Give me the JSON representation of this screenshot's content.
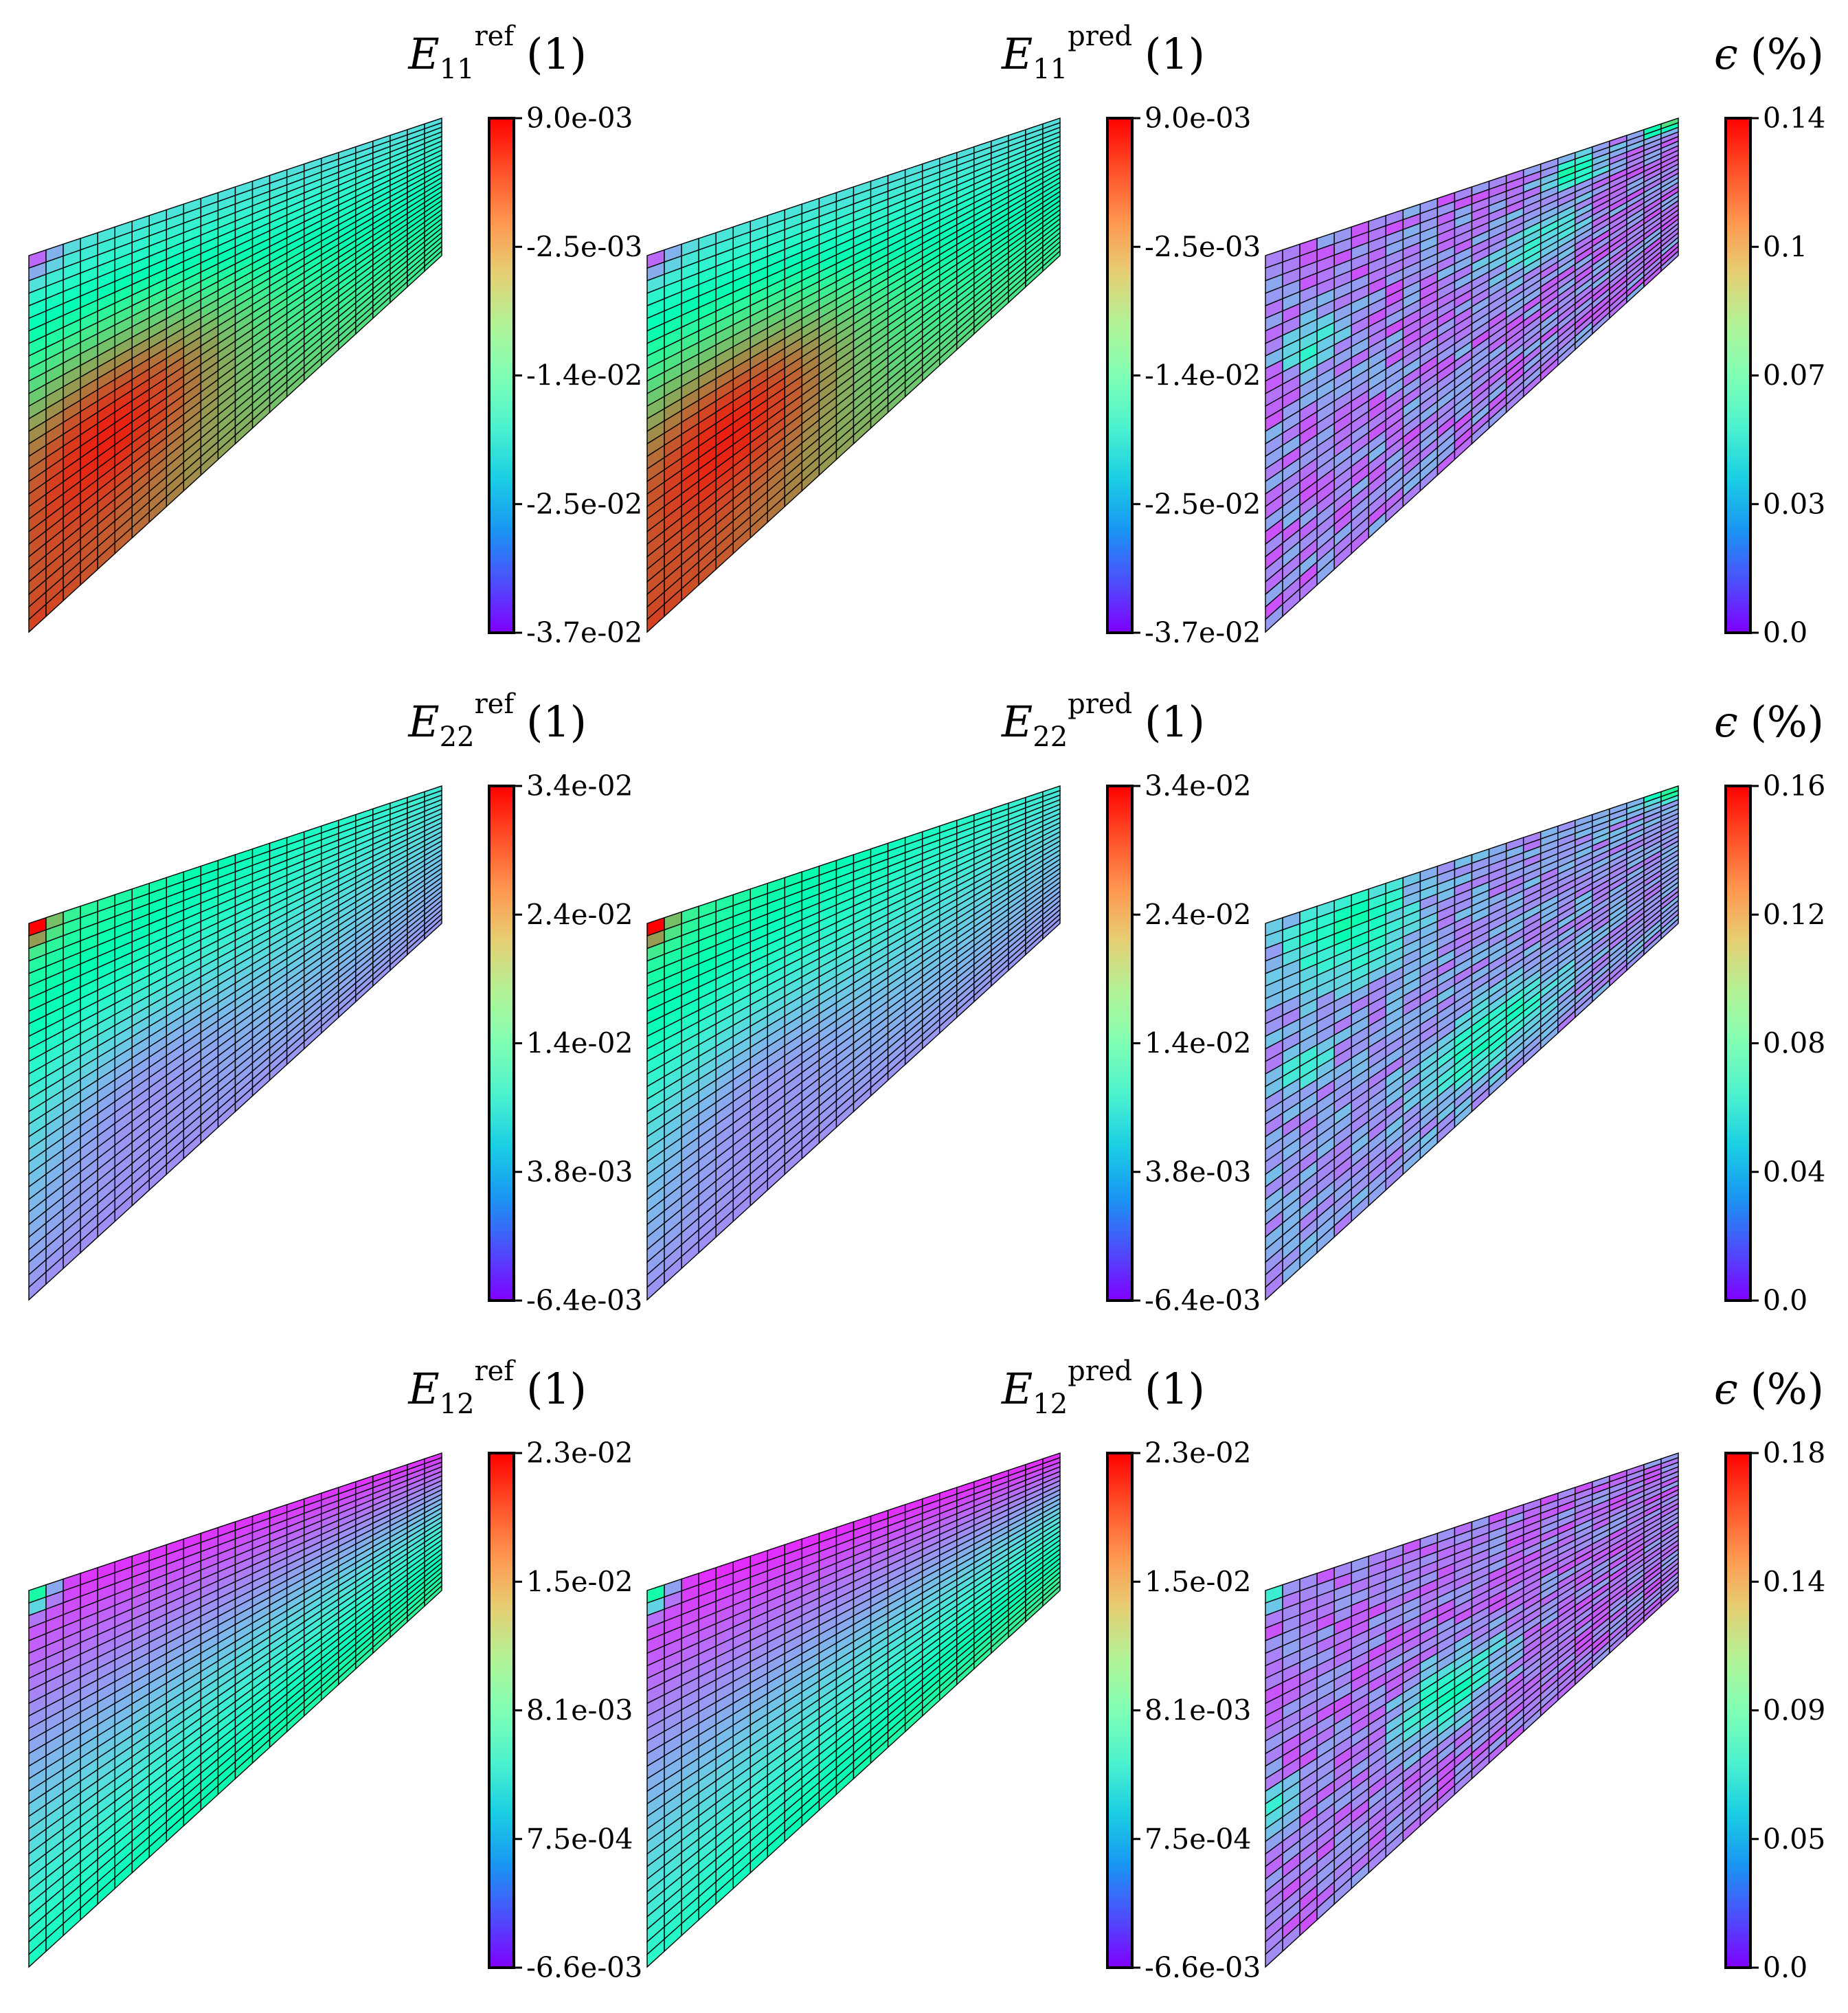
{
  "chart_data": [
    {
      "type": "heatmap",
      "quantity": "E",
      "sub": "11",
      "sup": "ref",
      "unit": "(1)",
      "field": "e11",
      "colorbar": {
        "ticks": [
          "9.0e-03",
          "-2.5e-03",
          "-1.4e-02",
          "-2.5e-02",
          "-3.7e-02"
        ]
      }
    },
    {
      "type": "heatmap",
      "quantity": "E",
      "sub": "11",
      "sup": "pred",
      "unit": "(1)",
      "field": "e11",
      "colorbar": {
        "ticks": [
          "9.0e-03",
          "-2.5e-03",
          "-1.4e-02",
          "-2.5e-02",
          "-3.7e-02"
        ]
      }
    },
    {
      "type": "heatmap",
      "quantity": "ϵ",
      "sub": "",
      "sup": "",
      "unit": "(%)",
      "field": "err1",
      "colorbar": {
        "ticks": [
          "0.14",
          "0.1",
          "0.07",
          "0.03",
          "0.0"
        ]
      }
    },
    {
      "type": "heatmap",
      "quantity": "E",
      "sub": "22",
      "sup": "ref",
      "unit": "(1)",
      "field": "e22",
      "colorbar": {
        "ticks": [
          "3.4e-02",
          "2.4e-02",
          "1.4e-02",
          "3.8e-03",
          "-6.4e-03"
        ]
      }
    },
    {
      "type": "heatmap",
      "quantity": "E",
      "sub": "22",
      "sup": "pred",
      "unit": "(1)",
      "field": "e22",
      "colorbar": {
        "ticks": [
          "3.4e-02",
          "2.4e-02",
          "1.4e-02",
          "3.8e-03",
          "-6.4e-03"
        ]
      }
    },
    {
      "type": "heatmap",
      "quantity": "ϵ",
      "sub": "",
      "sup": "",
      "unit": "(%)",
      "field": "err2",
      "colorbar": {
        "ticks": [
          "0.16",
          "0.12",
          "0.08",
          "0.04",
          "0.0"
        ]
      }
    },
    {
      "type": "heatmap",
      "quantity": "E",
      "sub": "12",
      "sup": "ref",
      "unit": "(1)",
      "field": "e12",
      "colorbar": {
        "ticks": [
          "2.3e-02",
          "1.5e-02",
          "8.1e-03",
          "7.5e-04",
          "-6.6e-03"
        ]
      }
    },
    {
      "type": "heatmap",
      "quantity": "E",
      "sub": "12",
      "sup": "pred",
      "unit": "(1)",
      "field": "e12p",
      "colorbar": {
        "ticks": [
          "2.3e-02",
          "1.5e-02",
          "8.1e-03",
          "7.5e-04",
          "-6.6e-03"
        ]
      }
    },
    {
      "type": "heatmap",
      "quantity": "ϵ",
      "sub": "",
      "sup": "",
      "unit": "(%)",
      "field": "err3",
      "colorbar": {
        "ticks": [
          "0.18",
          "0.14",
          "0.09",
          "0.05",
          "0.0"
        ]
      }
    }
  ],
  "colors": {
    "colormap": "rainbow",
    "mesh_lines": "#000000",
    "background": "#ffffff"
  }
}
